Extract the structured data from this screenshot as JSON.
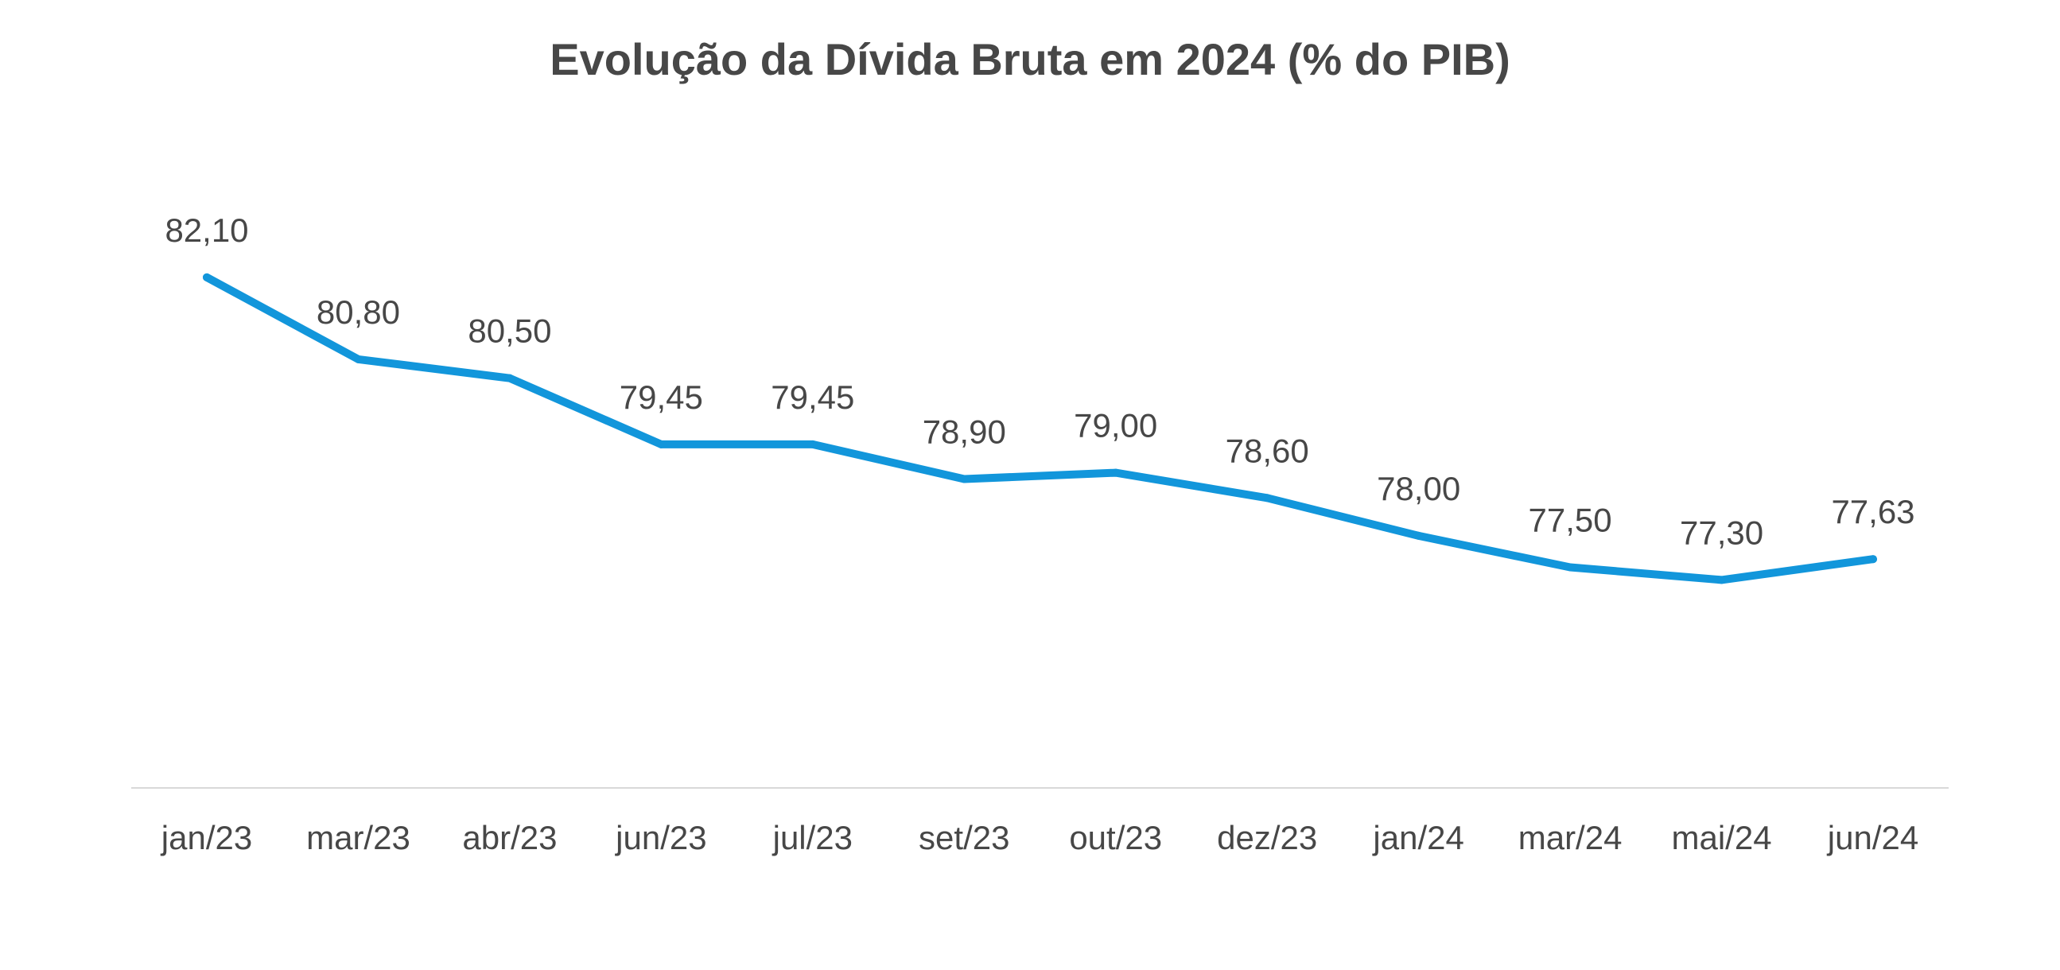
{
  "chart_data": {
    "type": "line",
    "title": "Evolução da Dívida Bruta em 2024 (% do PIB)",
    "xlabel": "",
    "ylabel": "",
    "categories": [
      "jan/23",
      "mar/23",
      "abr/23",
      "jun/23",
      "jul/23",
      "set/23",
      "out/23",
      "dez/23",
      "jan/24",
      "mar/24",
      "mai/24",
      "jun/24"
    ],
    "series": [
      {
        "values": [
          82.1,
          80.8,
          80.5,
          79.45,
          79.45,
          78.9,
          79.0,
          78.6,
          78.0,
          77.5,
          77.3,
          77.63
        ],
        "labels": [
          "82,10",
          "80,80",
          "80,50",
          "79,45",
          "79,45",
          "78,90",
          "79,00",
          "78,60",
          "78,00",
          "77,50",
          "77,30",
          "77,63"
        ],
        "color": "#1296DB"
      }
    ],
    "ylim": [
      74.0,
      86.5
    ],
    "grid": false,
    "legend": "none",
    "axis_color": "#D9D9D9",
    "text_color": "#474747"
  }
}
